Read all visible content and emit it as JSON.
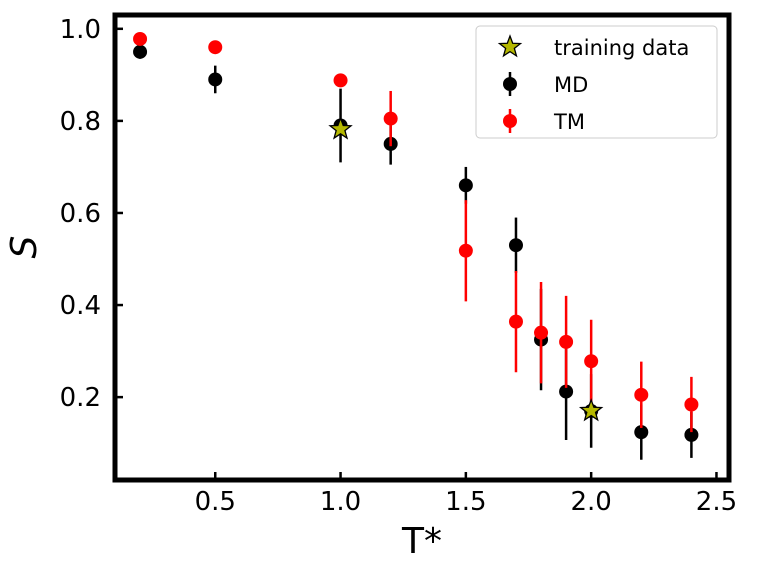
{
  "chart_data": {
    "type": "scatter",
    "xlabel": "T*",
    "ylabel": "S",
    "xlim": [
      0.1,
      2.55
    ],
    "ylim": [
      0.02,
      1.03
    ],
    "xticks": [
      0.5,
      1.0,
      1.5,
      2.0,
      2.5
    ],
    "xtick_labels": [
      "0.5",
      "1.0",
      "1.5",
      "2.0",
      "2.5"
    ],
    "yticks": [
      0.2,
      0.4,
      0.6,
      0.8,
      1.0
    ],
    "ytick_labels": [
      "0.2",
      "0.4",
      "0.6",
      "0.8",
      "1.0"
    ],
    "legend_position": "top-right",
    "series": [
      {
        "name": "MD",
        "color": "#000000",
        "marker": "circle",
        "points": [
          {
            "x": 0.2,
            "y": 0.95,
            "err": 0.015
          },
          {
            "x": 0.5,
            "y": 0.89,
            "err": 0.03
          },
          {
            "x": 1.0,
            "y": 0.79,
            "err": 0.08
          },
          {
            "x": 1.2,
            "y": 0.75,
            "err": 0.045
          },
          {
            "x": 1.5,
            "y": 0.66,
            "err": 0.04
          },
          {
            "x": 1.7,
            "y": 0.53,
            "err": 0.06
          },
          {
            "x": 1.8,
            "y": 0.325,
            "err": 0.11
          },
          {
            "x": 1.9,
            "y": 0.212,
            "err": 0.105
          },
          {
            "x": 2.0,
            "y": 0.17,
            "err": 0.08
          },
          {
            "x": 2.2,
            "y": 0.124,
            "err": 0.06
          },
          {
            "x": 2.4,
            "y": 0.118,
            "err": 0.05
          }
        ]
      },
      {
        "name": "TM",
        "color": "#ff0000",
        "marker": "circle",
        "points": [
          {
            "x": 0.2,
            "y": 0.978,
            "err": 0.008
          },
          {
            "x": 0.5,
            "y": 0.96,
            "err": 0.004
          },
          {
            "x": 1.0,
            "y": 0.888,
            "err": 0.004
          },
          {
            "x": 1.2,
            "y": 0.805,
            "err": 0.06
          },
          {
            "x": 1.5,
            "y": 0.518,
            "err": 0.11
          },
          {
            "x": 1.7,
            "y": 0.364,
            "err": 0.11
          },
          {
            "x": 1.8,
            "y": 0.34,
            "err": 0.11
          },
          {
            "x": 1.9,
            "y": 0.32,
            "err": 0.1
          },
          {
            "x": 2.0,
            "y": 0.278,
            "err": 0.09
          },
          {
            "x": 2.2,
            "y": 0.205,
            "err": 0.072
          },
          {
            "x": 2.4,
            "y": 0.184,
            "err": 0.06
          }
        ]
      },
      {
        "name": "training data",
        "color": "#b5b800",
        "marker": "star",
        "points": [
          {
            "x": 1.0,
            "y": 0.782
          },
          {
            "x": 2.0,
            "y": 0.17
          }
        ]
      }
    ]
  }
}
